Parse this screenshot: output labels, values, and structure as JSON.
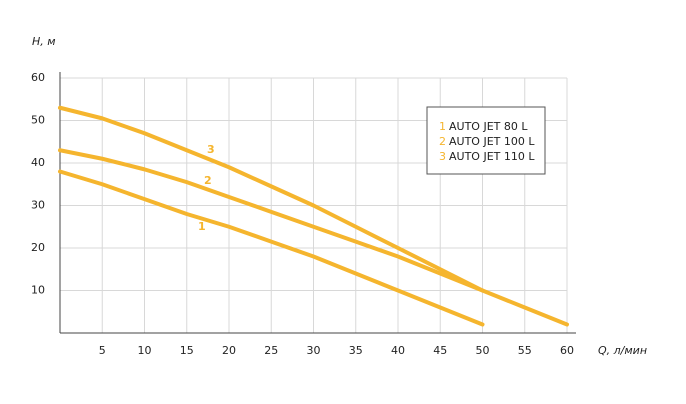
{
  "chart_data": {
    "type": "line",
    "ylabel": "H, м",
    "xlabel": "Q, л/мин",
    "x": [
      0,
      5,
      10,
      15,
      20,
      25,
      30,
      35,
      40,
      45,
      50,
      55,
      60
    ],
    "xlim": [
      0,
      60
    ],
    "xticks": [
      5,
      10,
      15,
      20,
      25,
      30,
      35,
      40,
      45,
      50,
      55,
      60
    ],
    "ylim": [
      0,
      60
    ],
    "yticks": [
      10,
      20,
      30,
      40,
      50,
      60
    ],
    "grid": true,
    "series": [
      {
        "id": "1",
        "name": "AUTO JET 80 L",
        "color": "#f5b52e",
        "values": [
          38,
          35,
          31.5,
          28,
          25,
          21.5,
          18,
          14,
          10,
          6,
          2,
          null,
          null
        ]
      },
      {
        "id": "2",
        "name": "AUTO JET 100 L",
        "color": "#f5b52e",
        "values": [
          43,
          41,
          38.5,
          35.5,
          32,
          28.5,
          25,
          21.5,
          18,
          14,
          10,
          6,
          2
        ]
      },
      {
        "id": "3",
        "name": "AUTO JET 110 L",
        "color": "#f5b52e",
        "values": [
          53,
          50.5,
          47,
          43,
          39,
          34.5,
          30,
          25,
          20,
          15,
          10,
          null,
          null
        ]
      }
    ]
  }
}
